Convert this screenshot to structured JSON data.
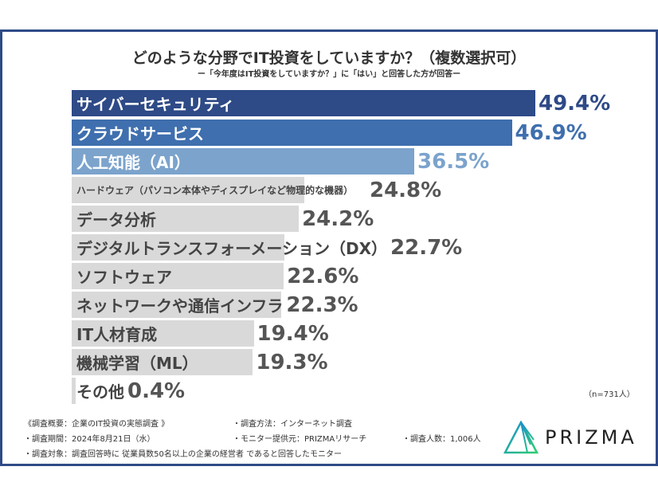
{
  "chart_data": {
    "type": "bar",
    "orientation": "horizontal",
    "title": "どのような分野でIT投資をしていますか？（複数選択可）",
    "subtitle": "ー「今年度はIT投資をしていますか？」に「はい」と回答した方が回答ー",
    "categories": [
      "サイバーセキュリティ",
      "クラウドサービス",
      "人工知能（AI）",
      "ハードウェア（パソコン本体やディスプレイなど物理的な機器）",
      "データ分析",
      "デジタルトランスフォーメーション（DX）",
      "ソフトウェア",
      "ネットワークや通信インフラ",
      "IT人材育成",
      "機械学習（ML）",
      "その他"
    ],
    "values": [
      49.4,
      46.9,
      36.5,
      24.8,
      24.2,
      22.7,
      22.6,
      22.3,
      19.4,
      19.3,
      0.4
    ],
    "value_labels": [
      "49.4%",
      "46.9%",
      "36.5%",
      "24.8%",
      "24.2%",
      "22.7%",
      "22.6%",
      "22.3%",
      "19.4%",
      "19.3%",
      "0.4%"
    ],
    "bar_colors": [
      "#2e4a87",
      "#3f6fae",
      "#7ba3cc",
      "#d9d9d9",
      "#d9d9d9",
      "#d9d9d9",
      "#d9d9d9",
      "#d9d9d9",
      "#d9d9d9",
      "#d9d9d9",
      "#d9d9d9"
    ],
    "value_colors": [
      "#2e4a87",
      "#3f6fae",
      "#7ba3cc",
      "#555555",
      "#555555",
      "#555555",
      "#555555",
      "#555555",
      "#555555",
      "#555555",
      "#555555"
    ],
    "unit": "%",
    "grid": false
  },
  "sample_note": "（n=731人）",
  "footer": {
    "overview": "《調査概要：企業のIT投資の実態調査 》",
    "period": "・調査期間：2024年8月21日（水）",
    "target": "・調査対象：調査回答時に 従業員数50名以上の企業の経営者 であると回答したモニター",
    "method": "・調査方法：インターネット調査",
    "provider": "・モニター提供元：PRIZMAリサーチ",
    "count": "・調査人数：1,006人"
  },
  "logo": {
    "text": "PRIZMA"
  }
}
